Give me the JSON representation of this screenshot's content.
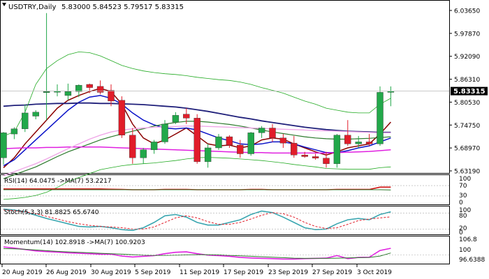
{
  "window": {
    "symbol": "USDTRY,Daily",
    "ohlc": "5.83000 5.84523 5.79517 5.83315"
  },
  "colors": {
    "bull": "#22a84a",
    "bear": "#e11d2a",
    "ma_darkred": "#8b0000",
    "ma_blue": "#0a12c8",
    "ma_navy": "#1f1f7a",
    "ma_green": "#2c7a2c",
    "ma_magenta": "#e020e0",
    "ma_pink": "#f0a8e8",
    "bb": "#22aa22",
    "stoch_main": "#3aa6b0",
    "stoch_signal": "#e11d2a",
    "rsi_main": "#d01010",
    "rsi_ma": "#2c7a2c",
    "mom_main": "#e020e0",
    "mom_ma": "#2c7a2c",
    "price_tag_bg": "#000000",
    "price_tag_fg": "#ffffff"
  },
  "panels": {
    "rsi": {
      "label": "RSI(14) 64.0475   ->MA(7) 53.2217",
      "levels": [
        "100",
        "70",
        "30",
        "0"
      ]
    },
    "stoch": {
      "label": "Stoch(5,3,3) 81.8825 65.6740",
      "levels": [
        "100",
        "80",
        "20",
        "0"
      ]
    },
    "momentum": {
      "label": "Momentum(14) 102.8918   ->MA(7) 100.9203",
      "levels": [
        "106.8",
        "100",
        "96.6388"
      ]
    }
  },
  "chart_data": {
    "type": "candlestick",
    "price_axis_labels": [
      "6.03650",
      "5.97870",
      "5.92090",
      "5.86310",
      "5.80530",
      "5.74750",
      "5.68970",
      "5.63190"
    ],
    "current_price": "5.83315",
    "date_labels": [
      "20 Aug 2019",
      "26 Aug 2019",
      "30 Aug 2019",
      "5 Sep 2019",
      "11 Sep 2019",
      "17 Sep 2019",
      "23 Sep 2019",
      "27 Sep 2019",
      "3 Oct 2019"
    ],
    "candles": [
      [
        5.665,
        5.73,
        5.648,
        5.728
      ],
      [
        5.725,
        5.742,
        5.712,
        5.738
      ],
      [
        5.738,
        5.8,
        5.73,
        5.778
      ],
      [
        5.77,
        5.785,
        5.762,
        5.78
      ],
      [
        5.83,
        6.03,
        5.76,
        5.832
      ],
      [
        5.832,
        5.85,
        5.82,
        5.833
      ],
      [
        5.822,
        5.852,
        5.81,
        5.832
      ],
      [
        5.832,
        5.85,
        5.818,
        5.848
      ],
      [
        5.85,
        5.852,
        5.828,
        5.842
      ],
      [
        5.845,
        5.86,
        5.825,
        5.83
      ],
      [
        5.835,
        5.85,
        5.795,
        5.808
      ],
      [
        5.81,
        5.82,
        5.715,
        5.722
      ],
      [
        5.722,
        5.74,
        5.65,
        5.665
      ],
      [
        5.665,
        5.69,
        5.65,
        5.685
      ],
      [
        5.685,
        5.71,
        5.675,
        5.705
      ],
      [
        5.705,
        5.76,
        5.7,
        5.75
      ],
      [
        5.755,
        5.78,
        5.75,
        5.772
      ],
      [
        5.775,
        5.79,
        5.75,
        5.765
      ],
      [
        5.765,
        5.775,
        5.65,
        5.655
      ],
      [
        5.655,
        5.7,
        5.64,
        5.69
      ],
      [
        5.69,
        5.725,
        5.685,
        5.718
      ],
      [
        5.718,
        5.722,
        5.69,
        5.697
      ],
      [
        5.697,
        5.71,
        5.665,
        5.675
      ],
      [
        5.675,
        5.73,
        5.67,
        5.728
      ],
      [
        5.728,
        5.745,
        5.715,
        5.74
      ],
      [
        5.74,
        5.75,
        5.705,
        5.715
      ],
      [
        5.715,
        5.725,
        5.69,
        5.702
      ],
      [
        5.702,
        5.72,
        5.665,
        5.672
      ],
      [
        5.672,
        5.68,
        5.665,
        5.668
      ],
      [
        5.668,
        5.675,
        5.66,
        5.664
      ],
      [
        5.664,
        5.68,
        5.64,
        5.65
      ],
      [
        5.65,
        5.725,
        5.64,
        5.722
      ],
      [
        5.722,
        5.76,
        5.695,
        5.7
      ],
      [
        5.7,
        5.72,
        5.69,
        5.705
      ],
      [
        5.705,
        5.725,
        5.695,
        5.7
      ],
      [
        5.7,
        5.845,
        5.695,
        5.83
      ],
      [
        5.83,
        5.845,
        5.795,
        5.833
      ]
    ],
    "overlays": [
      {
        "color": "#8b0000",
        "width": 1.5,
        "values": [
          5.64,
          5.665,
          5.7,
          5.73,
          5.76,
          5.79,
          5.81,
          5.822,
          5.832,
          5.84,
          5.832,
          5.8,
          5.75,
          5.715,
          5.7,
          5.71,
          5.725,
          5.74,
          5.72,
          5.7,
          5.695,
          5.697,
          5.69,
          5.695,
          5.71,
          5.715,
          5.712,
          5.7,
          5.69,
          5.68,
          5.672,
          5.68,
          5.69,
          5.695,
          5.7,
          5.725,
          5.755
        ]
      },
      {
        "color": "#0a12c8",
        "width": 1.5,
        "values": [
          5.645,
          5.66,
          5.685,
          5.71,
          5.735,
          5.76,
          5.785,
          5.805,
          5.818,
          5.822,
          5.815,
          5.8,
          5.778,
          5.76,
          5.748,
          5.74,
          5.738,
          5.74,
          5.735,
          5.725,
          5.715,
          5.708,
          5.7,
          5.698,
          5.7,
          5.705,
          5.705,
          5.7,
          5.692,
          5.685,
          5.678,
          5.678,
          5.683,
          5.69,
          5.695,
          5.705,
          5.715
        ]
      },
      {
        "color": "#1f1f7a",
        "width": 1.8,
        "values": [
          5.795,
          5.797,
          5.798,
          5.8,
          5.801,
          5.802,
          5.802,
          5.803,
          5.803,
          5.802,
          5.802,
          5.801,
          5.8,
          5.799,
          5.797,
          5.795,
          5.793,
          5.79,
          5.786,
          5.782,
          5.777,
          5.772,
          5.767,
          5.763,
          5.758,
          5.754,
          5.75,
          5.746,
          5.742,
          5.739,
          5.736,
          5.734,
          5.732,
          5.731,
          5.73,
          5.729,
          5.729
        ]
      },
      {
        "color": "#2c7a2c",
        "width": 1.2,
        "values": [
          5.612,
          5.622,
          5.632,
          5.642,
          5.655,
          5.668,
          5.68,
          5.69,
          5.7,
          5.71,
          5.718,
          5.725,
          5.732,
          5.738,
          5.745,
          5.75,
          5.754,
          5.757,
          5.757,
          5.755,
          5.752,
          5.749,
          5.745,
          5.74,
          5.735,
          5.73,
          5.726,
          5.722,
          5.718,
          5.715,
          5.713,
          5.712,
          5.712,
          5.713,
          5.714,
          5.716,
          5.718
        ]
      },
      {
        "color": "#e020e0",
        "width": 1.5,
        "values": [
          5.688,
          5.689,
          5.69,
          5.69,
          5.691,
          5.691,
          5.692,
          5.692,
          5.692,
          5.692,
          5.691,
          5.69,
          5.689,
          5.688,
          5.687,
          5.686,
          5.685,
          5.684,
          5.683,
          5.682,
          5.681,
          5.68,
          5.679,
          5.678,
          5.678,
          5.677,
          5.677,
          5.677,
          5.677,
          5.677,
          5.677,
          5.678,
          5.679,
          5.68,
          5.681,
          5.683,
          5.685
        ]
      },
      {
        "color": "#f0a8e8",
        "width": 1.4,
        "values": [
          5.62,
          5.63,
          5.64,
          5.65,
          5.662,
          5.675,
          5.688,
          5.7,
          5.712,
          5.722,
          5.73,
          5.735,
          5.738,
          5.74,
          5.742,
          5.743,
          5.744,
          5.745,
          5.745,
          5.744,
          5.743,
          5.742,
          5.741,
          5.74,
          5.739,
          5.738,
          5.737,
          5.736,
          5.735,
          5.734,
          5.733,
          5.732,
          5.731,
          5.73,
          5.729,
          5.728,
          5.728
        ]
      },
      {
        "color": "#22aa22",
        "width": 0.8,
        "values": [
          5.72,
          5.73,
          5.78,
          5.85,
          5.89,
          5.91,
          5.925,
          5.932,
          5.93,
          5.922,
          5.91,
          5.898,
          5.89,
          5.884,
          5.88,
          5.877,
          5.875,
          5.872,
          5.868,
          5.865,
          5.862,
          5.86,
          5.856,
          5.85,
          5.842,
          5.835,
          5.828,
          5.818,
          5.808,
          5.8,
          5.79,
          5.785,
          5.78,
          5.778,
          5.778,
          5.8,
          5.815
        ]
      },
      {
        "color": "#22aa22",
        "width": 0.8,
        "values": [
          5.56,
          5.562,
          5.565,
          5.57,
          5.578,
          5.59,
          5.605,
          5.615,
          5.625,
          5.635,
          5.64,
          5.645,
          5.648,
          5.65,
          5.652,
          5.655,
          5.658,
          5.662,
          5.665,
          5.666,
          5.665,
          5.664,
          5.662,
          5.66,
          5.658,
          5.655,
          5.652,
          5.648,
          5.645,
          5.642,
          5.638,
          5.637,
          5.636,
          5.636,
          5.636,
          5.64,
          5.642
        ]
      }
    ],
    "rsi": {
      "main": [
        57,
        57,
        57,
        57,
        57,
        57,
        57,
        57,
        57,
        57,
        56,
        55,
        54,
        54,
        54,
        55,
        55,
        55,
        54,
        54,
        54,
        54,
        54,
        55,
        55,
        54,
        54,
        54,
        54,
        54,
        54,
        55,
        55,
        55,
        55,
        64,
        64
      ],
      "signal": [
        54,
        54,
        54,
        54,
        54,
        54,
        54,
        54,
        54,
        54,
        54,
        54,
        54,
        54,
        54,
        54,
        54,
        54,
        54,
        54,
        54,
        54,
        54,
        54,
        54,
        54,
        54,
        54,
        54,
        54,
        54,
        54,
        54,
        54,
        54,
        54,
        53
      ]
    },
    "stoch": {
      "main": [
        95,
        92,
        85,
        72,
        60,
        50,
        40,
        30,
        28,
        30,
        25,
        18,
        15,
        25,
        45,
        70,
        75,
        65,
        45,
        35,
        35,
        45,
        55,
        75,
        88,
        82,
        65,
        45,
        25,
        18,
        20,
        40,
        55,
        60,
        55,
        75,
        85
      ],
      "signal": [
        92,
        90,
        85,
        78,
        68,
        58,
        48,
        40,
        34,
        30,
        28,
        25,
        20,
        20,
        28,
        45,
        62,
        70,
        62,
        48,
        38,
        38,
        45,
        58,
        72,
        82,
        78,
        65,
        45,
        30,
        22,
        25,
        38,
        52,
        58,
        62,
        66
      ]
    },
    "momentum": {
      "main": [
        103.5,
        103.0,
        102.4,
        101.8,
        101.5,
        101.3,
        101.0,
        100.8,
        100.6,
        100.4,
        100.4,
        99.6,
        99.2,
        99.5,
        99.8,
        100.6,
        101.2,
        101.4,
        100.6,
        100.0,
        99.8,
        99.5,
        99.0,
        98.8,
        98.6,
        98.5,
        98.3,
        98.3,
        98.5,
        98.6,
        98.7,
        99.8,
        98.5,
        99.0,
        99.1,
        102.0,
        102.9
      ],
      "signal": [
        102.8,
        102.7,
        102.5,
        102.2,
        101.9,
        101.6,
        101.4,
        101.2,
        101.0,
        100.8,
        100.6,
        100.4,
        100.2,
        100.0,
        99.9,
        99.9,
        100.0,
        100.1,
        100.2,
        100.2,
        100.1,
        99.9,
        99.7,
        99.5,
        99.3,
        99.1,
        98.9,
        98.7,
        98.6,
        98.6,
        98.6,
        98.7,
        98.8,
        98.9,
        99.0,
        99.6,
        100.9
      ]
    }
  }
}
